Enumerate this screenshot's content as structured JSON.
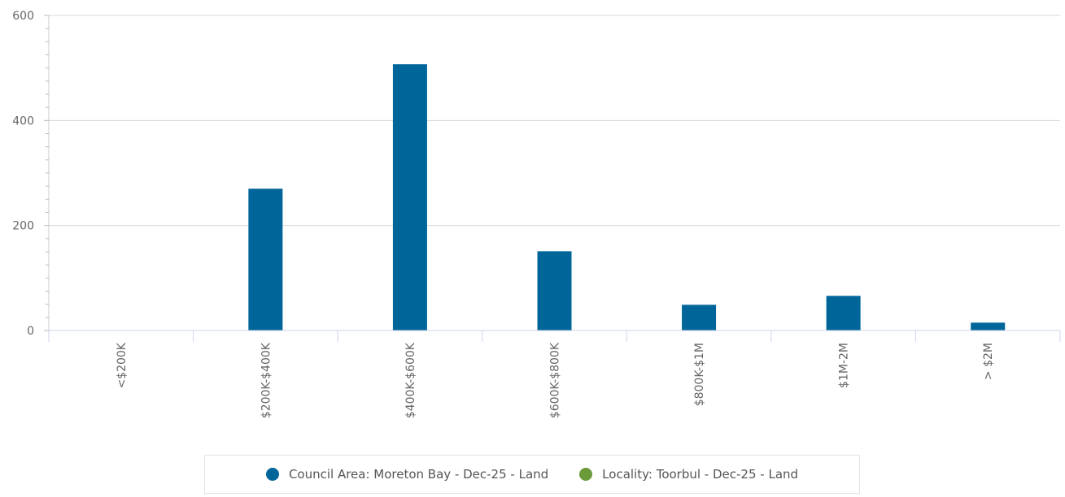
{
  "chart_data": {
    "type": "bar",
    "categories": [
      "<$200K",
      "$200K-$400K",
      "$400K-$600K",
      "$600K-$800K",
      "$800K-$1M",
      "$1M-2M",
      "> $2M"
    ],
    "series": [
      {
        "name": "Council Area: Moreton Bay - Dec-25 - Land",
        "color": "#006699",
        "values": [
          0,
          270,
          507,
          151,
          49,
          66,
          15
        ]
      },
      {
        "name": "Locality: Toorbul - Dec-25 - Land",
        "color": "#6a9a3a",
        "values": [
          0,
          0,
          0,
          0,
          0,
          0,
          0
        ]
      }
    ],
    "y_ticks": [
      0,
      200,
      400,
      600
    ],
    "ylim": [
      0,
      600
    ],
    "grid": true,
    "legend_position": "bottom"
  }
}
